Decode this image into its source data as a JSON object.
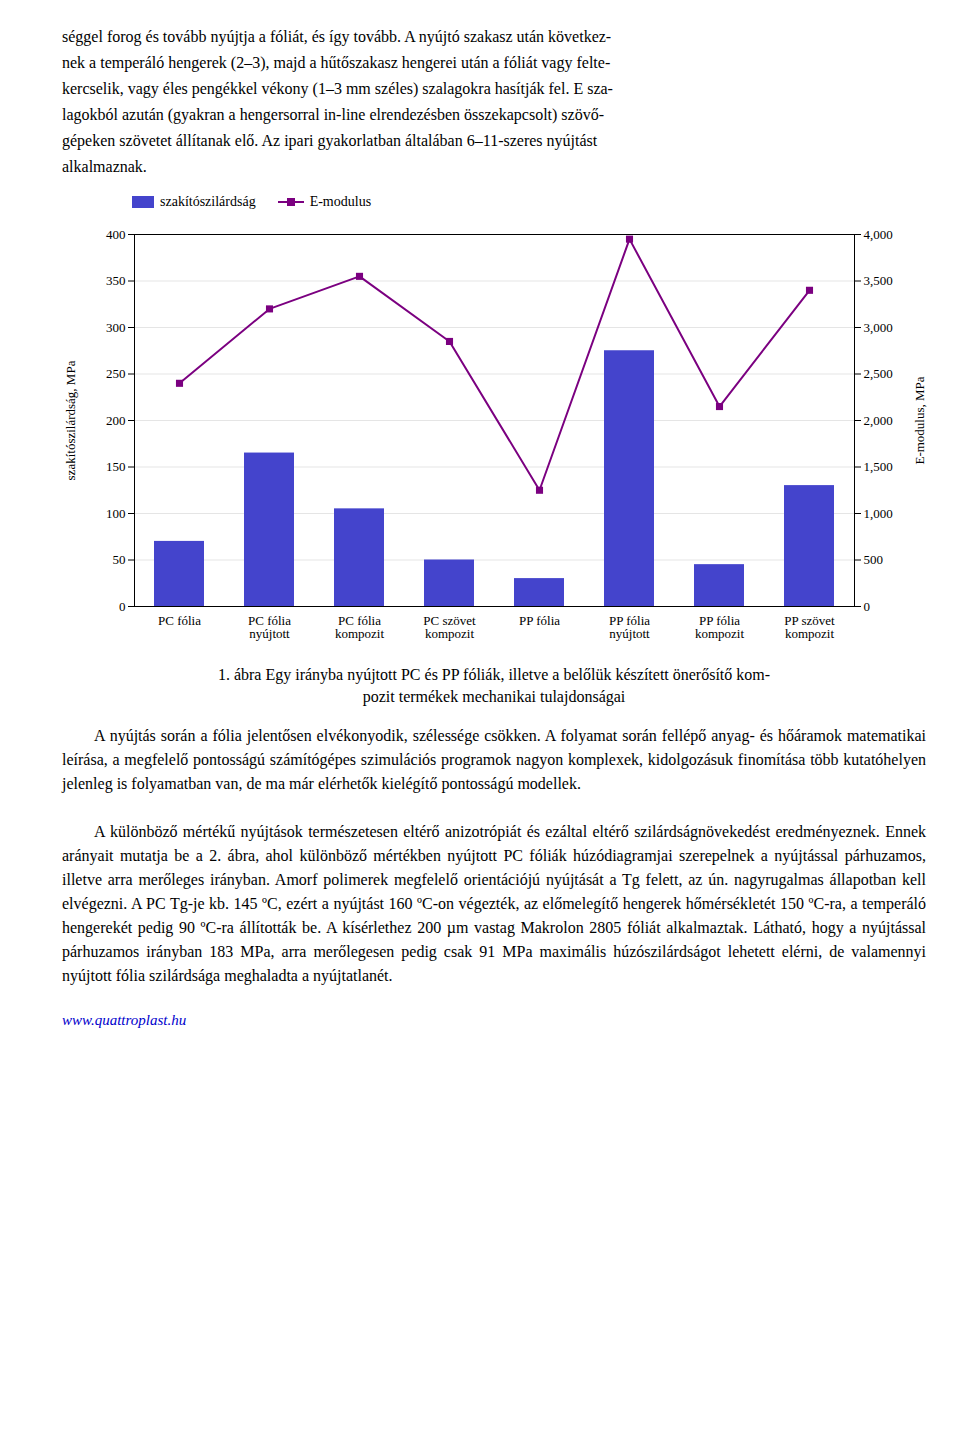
{
  "chart_data": {
    "type": "bar",
    "categories": [
      "PC fólia",
      "PC fólia\nnyújtott",
      "PC fólia\nkompozit",
      "PC szövet\nkompozit",
      "PP fólia",
      "PP fólia\nnyújtott",
      "PP fólia\nkompozit",
      "PP szövet\nkompozit"
    ],
    "series": [
      {
        "name": "szakítószilárdság",
        "type": "bar",
        "color": "#4444cc",
        "values": [
          70,
          165,
          105,
          50,
          30,
          275,
          45,
          130
        ]
      },
      {
        "name": "E-modulus",
        "type": "line",
        "axis": "y2",
        "color": "#7b0080",
        "marker": "square",
        "values": [
          2400,
          3200,
          3550,
          2850,
          1250,
          3950,
          2150,
          3400
        ]
      }
    ],
    "ylabel": "szakítószilárdság, MPa",
    "y2label": "E-modulus, MPa",
    "ylim": [
      0,
      400
    ],
    "yticks": [
      0,
      50,
      100,
      150,
      200,
      250,
      300,
      350,
      400
    ],
    "y2lim": [
      0,
      4000
    ],
    "y2ticks": [
      0,
      500,
      1000,
      1500,
      2000,
      2500,
      3000,
      3500,
      4000
    ],
    "grid": true,
    "legend": "upper left",
    "caption": [
      "1. ábra Egy irányba nyújtott PC és PP fóliák, illetve a belőlük készített önerősítő kom-",
      "pozit termékek mechanikai tulajdonságai"
    ]
  },
  "text_above": [
    "séggel forog és tovább nyújtja a fóliát, és így tovább. A nyújtó szakasz után következ-",
    "nek a temperáló hengerek (2–3), majd a hűtőszakasz hengerei után a fóliát vagy felte-",
    "kercselik, vagy éles pengékkel vékony (1–3 mm széles) szalagokra hasítják fel. E sza-",
    "lagokból azután (gyakran a hengersorral in-line elrendezésben összekapcsolt) szövő-",
    "gépeken szövetet állítanak elő. Az ipari gyakorlatban általában 6–11-szeres nyújtást",
    "alkalmaznak."
  ],
  "text_below": [
    "A nyújtás során a fólia jelentősen elvékonyodik, szélessége csökken. A folyamat során fellépő anyag- és hőáramok matematikai leírása, a megfelelő pontosságú számítógépes szimulációs programok nagyon komplexek, kidolgozásuk finomítása több kutatóhelyen jelenleg is folyamatban van, de ma már elérhetők kielégítő pontosságú modellek.",
    "A különböző mértékű nyújtások természetesen eltérő anizotrópiát és ezáltal eltérő szilárdságnövekedést eredményeznek. Ennek arányait mutatja be a 2. ábra, ahol különböző mértékben nyújtott PC fóliák húzódiagramjai szerepelnek a nyújtással párhuzamos, illetve arra merőleges irányban. Amorf polimerek megfelelő orientációjú nyújtását a Tg felett, az ún. nagyrugalmas állapotban kell elvégezni. A PC Tg-je kb. 145 ºC, ezért a nyújtást 160 ºC-on végezték, az előmelegítő hengerek hőmérsékletét 150 ºC-ra, a temperáló hengerekét pedig 90 ºC-ra állították be. A kísérlethez 200 µm vastag Makrolon 2805 fóliát alkalmaztak. Látható, hogy a nyújtással párhuzamos irányban 183 MPa, arra merőlegesen pedig csak 91 MPa maximális húzószilárdságot lehetett elérni, de valamennyi nyújtott fólia szilárdsága meghaladta a nyújtatlanét."
  ],
  "url": "www.quattroplast.hu"
}
